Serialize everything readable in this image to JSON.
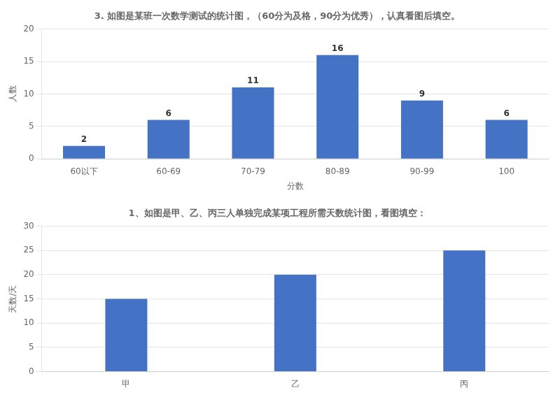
{
  "chart_data": [
    {
      "type": "bar",
      "title": "3. 如图是某班一次数学测试的统计图，（60分为及格，90分为优秀），认真看图后填空。",
      "categories": [
        "60以下",
        "60-69",
        "70-79",
        "80-89",
        "90-99",
        "100"
      ],
      "values": [
        2,
        6,
        11,
        16,
        9,
        6
      ],
      "color": "#4472C4",
      "xlabel": "分数",
      "ylabel": "人数",
      "ylim": [
        0,
        20
      ],
      "yticks": [
        0,
        5,
        10,
        15,
        20
      ],
      "grid": true,
      "data_labels": true
    },
    {
      "type": "bar",
      "title": "1、如图是甲、乙、丙三人单独完成某项工程所需天数统计图，看图填空：",
      "categories": [
        "甲",
        "乙",
        "丙"
      ],
      "values": [
        15,
        20,
        25
      ],
      "color": "#4472C4",
      "ylabel": "天数/天",
      "ylim": [
        0,
        30
      ],
      "yticks": [
        0,
        5,
        10,
        15,
        20,
        25,
        30
      ],
      "grid": true
    }
  ]
}
